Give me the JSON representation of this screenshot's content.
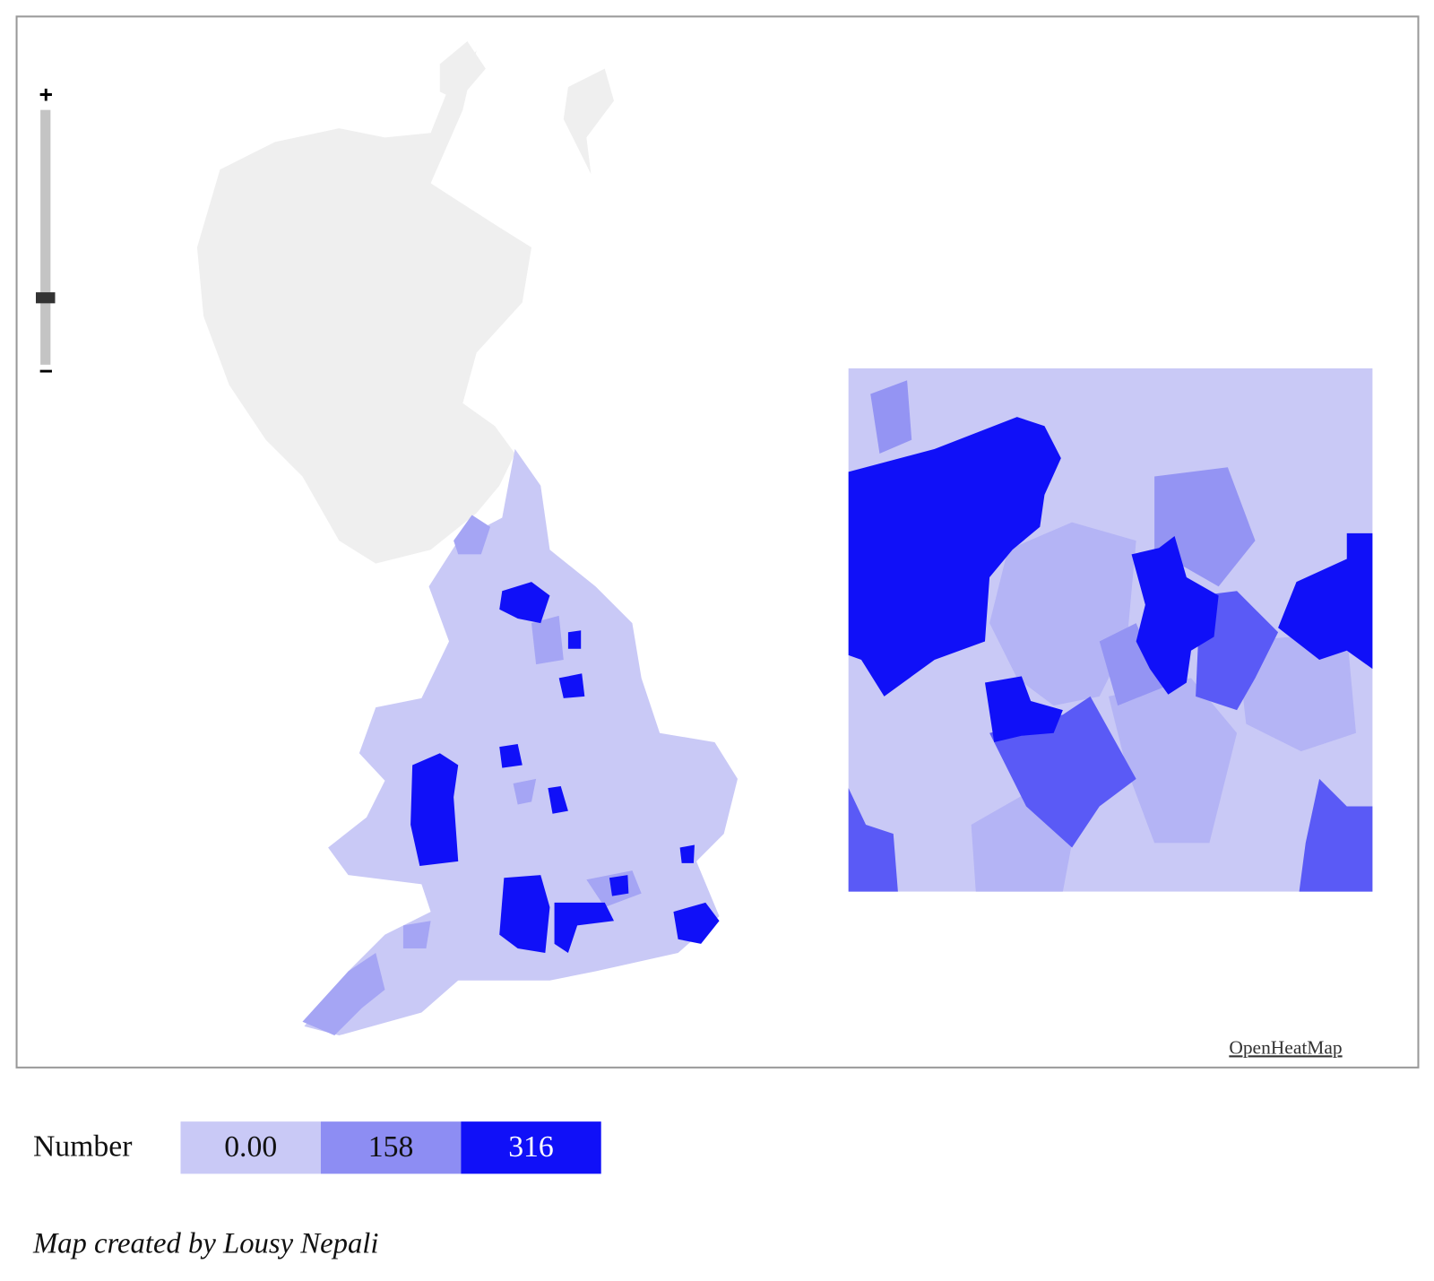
{
  "map": {
    "zoom": {
      "in": "+",
      "out": "−"
    },
    "attribution": "OpenHeatMap"
  },
  "legend": {
    "title": "Number",
    "stops": [
      {
        "label": "0.00",
        "color": "#c9c9f6"
      },
      {
        "label": "158",
        "color": "#8d8df3"
      },
      {
        "label": "316",
        "color": "#1010f8"
      }
    ]
  },
  "caption": "Map created by Lousy Nepali"
}
